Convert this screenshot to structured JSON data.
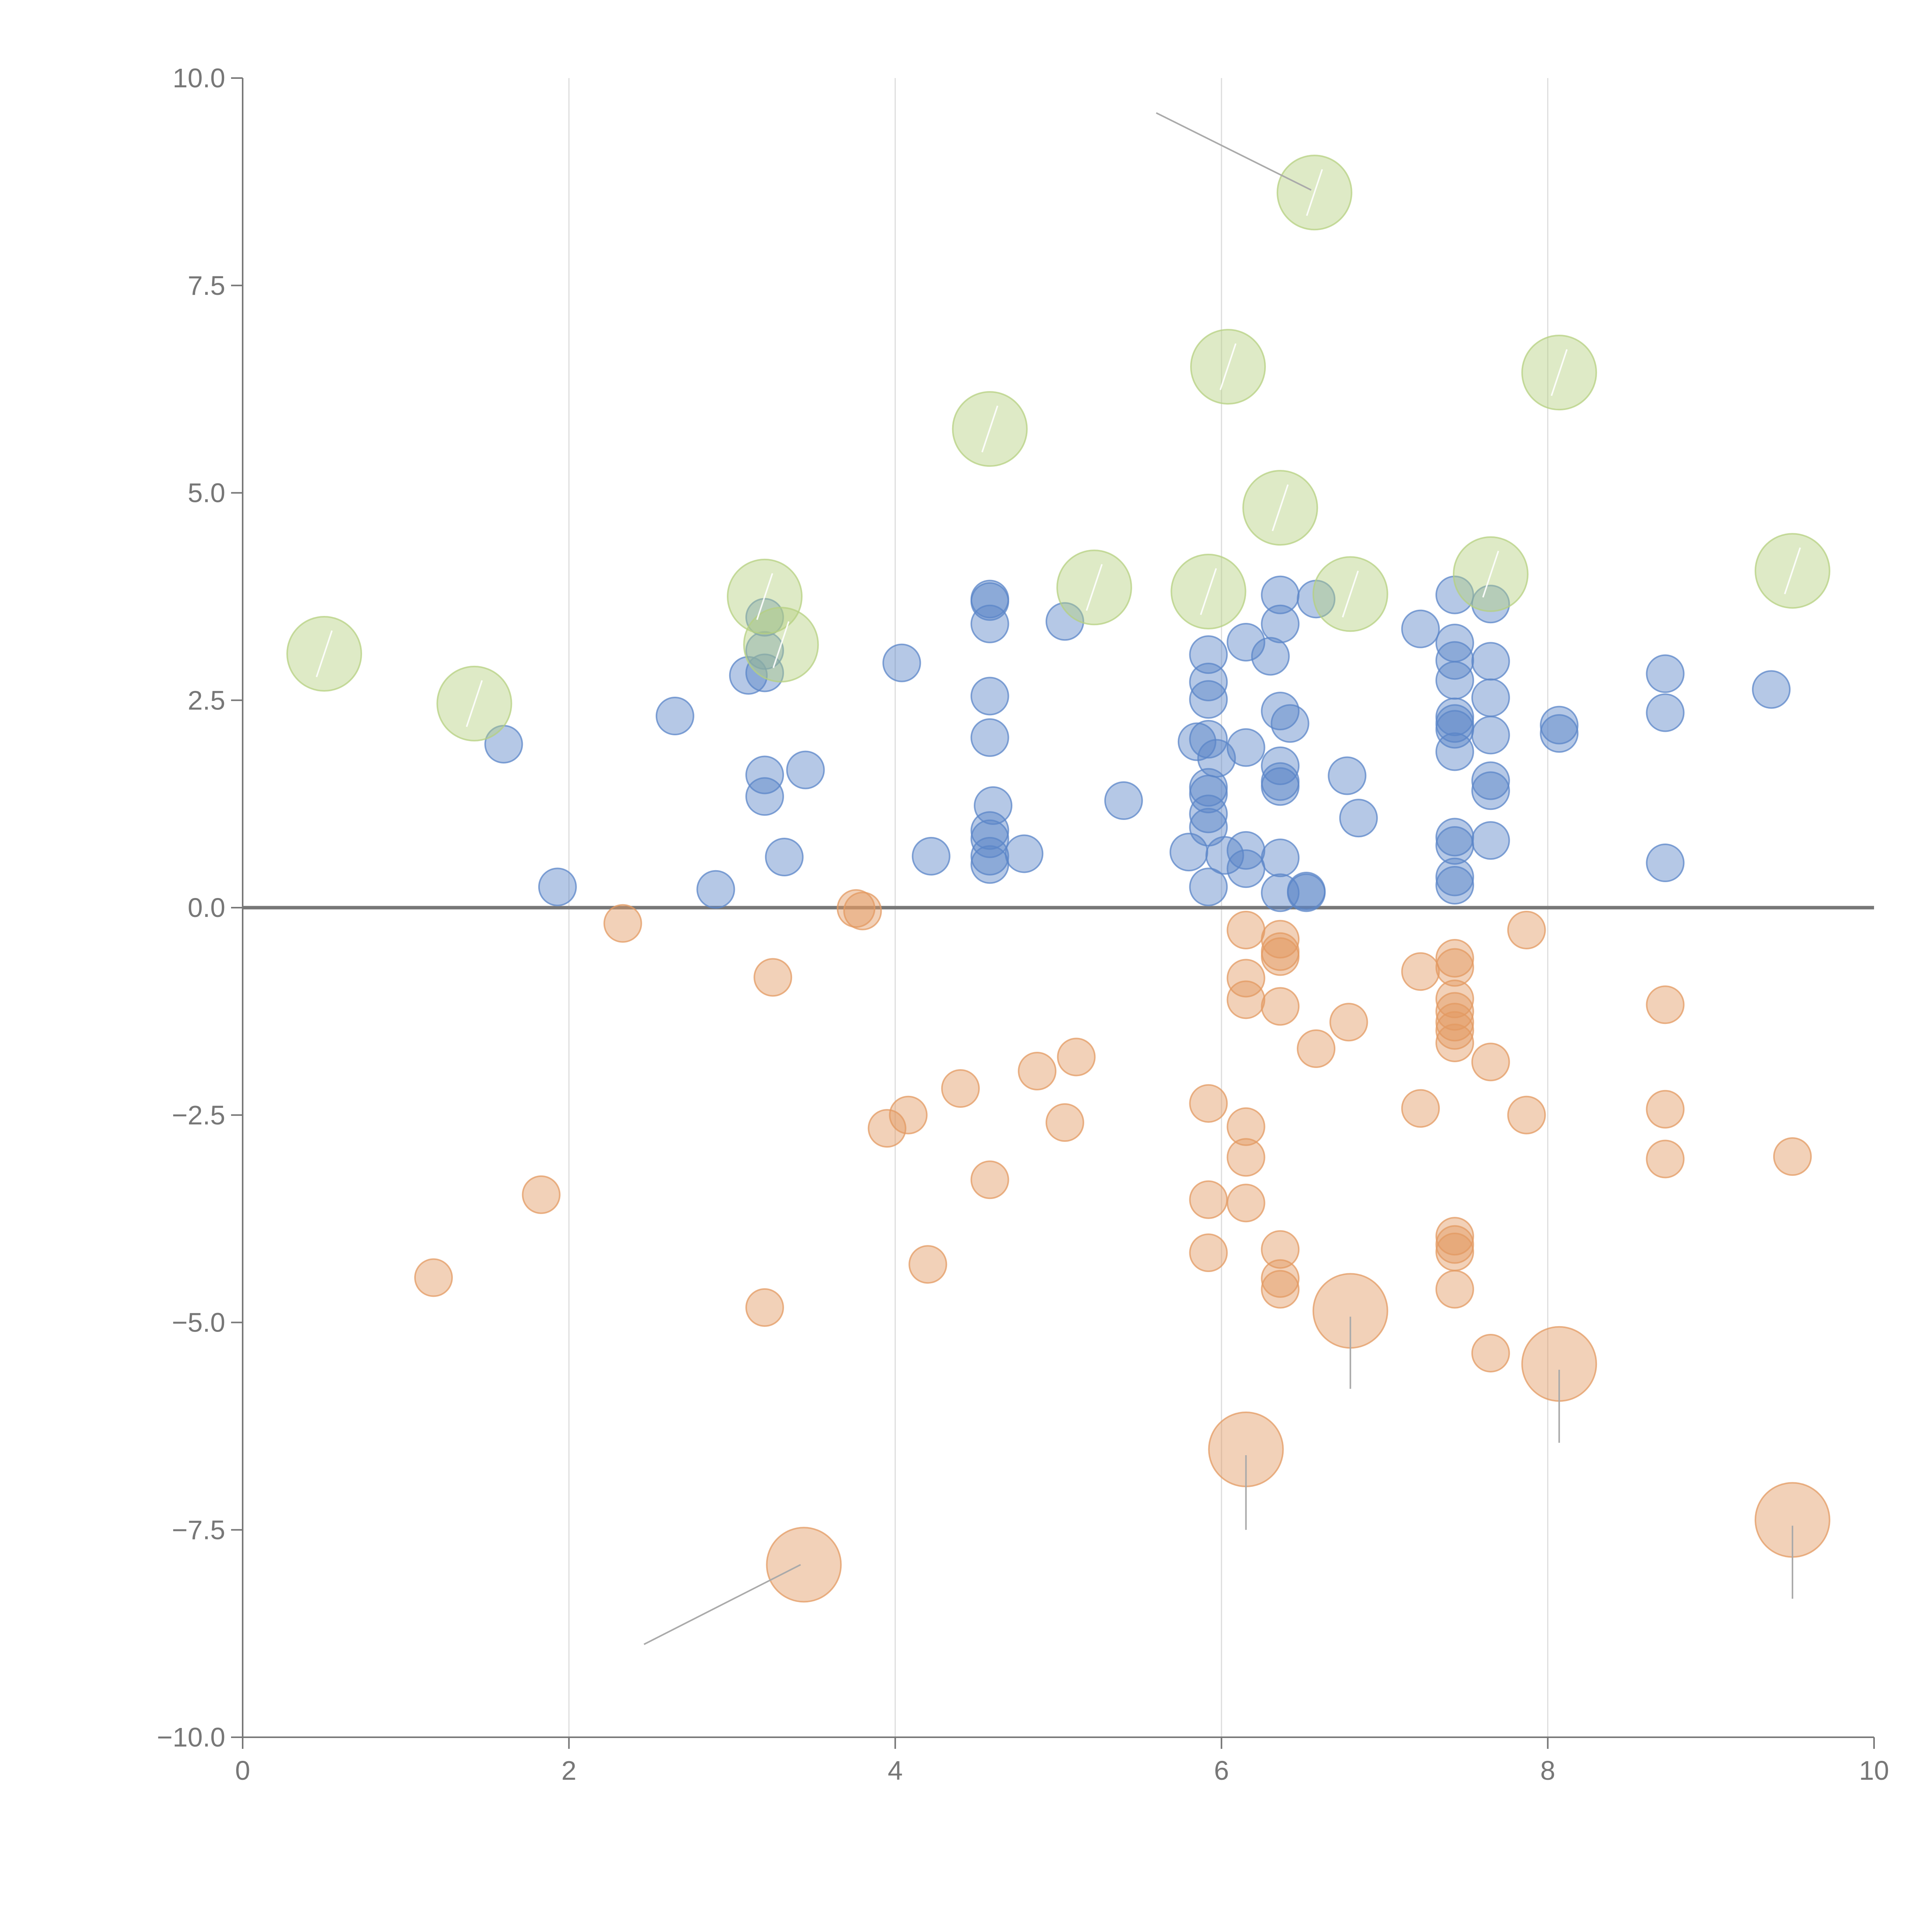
{
  "chart_data": {
    "type": "scatter",
    "title": "",
    "xlabel": "",
    "ylabel": "",
    "xlim": [
      0,
      10
    ],
    "ylim": [
      -10,
      10
    ],
    "x_ticks": [
      0,
      2,
      4,
      6,
      8,
      10
    ],
    "x_tick_labels": [
      "0",
      "2",
      "4",
      "6",
      "8",
      "10"
    ],
    "y_ticks": [
      -10,
      -7.5,
      -5,
      -2.5,
      0,
      2.5,
      5,
      7.5,
      10
    ],
    "y_tick_labels": [
      "−10.0",
      "−7.5",
      "−5.0",
      "−2.5",
      "0.0",
      "2.5",
      "5.0",
      "7.5",
      "10.0"
    ],
    "vertical_grid": true,
    "zero_line": true,
    "series": [
      {
        "name": "positive",
        "color": "#5b86c8",
        "size": "small",
        "points": [
          {
            "x": 1.6,
            "y": 1.97
          },
          {
            "x": 1.93,
            "y": 0.25
          },
          {
            "x": 2.65,
            "y": 2.31
          },
          {
            "x": 2.9,
            "y": 0.22
          },
          {
            "x": 3.1,
            "y": 2.8
          },
          {
            "x": 3.2,
            "y": 3.5
          },
          {
            "x": 3.2,
            "y": 3.1
          },
          {
            "x": 3.2,
            "y": 2.83
          },
          {
            "x": 3.2,
            "y": 1.6
          },
          {
            "x": 3.2,
            "y": 1.34
          },
          {
            "x": 3.32,
            "y": 0.61
          },
          {
            "x": 3.45,
            "y": 1.66
          },
          {
            "x": 4.04,
            "y": 2.95
          },
          {
            "x": 4.22,
            "y": 0.62
          },
          {
            "x": 4.58,
            "y": 3.72
          },
          {
            "x": 4.58,
            "y": 3.69
          },
          {
            "x": 4.58,
            "y": 3.42
          },
          {
            "x": 4.58,
            "y": 2.55
          },
          {
            "x": 4.58,
            "y": 2.05
          },
          {
            "x": 4.6,
            "y": 1.23
          },
          {
            "x": 4.58,
            "y": 0.93
          },
          {
            "x": 4.58,
            "y": 0.83
          },
          {
            "x": 4.58,
            "y": 0.62
          },
          {
            "x": 4.58,
            "y": 0.52
          },
          {
            "x": 4.79,
            "y": 0.65
          },
          {
            "x": 5.04,
            "y": 3.45
          },
          {
            "x": 5.4,
            "y": 1.29
          },
          {
            "x": 5.8,
            "y": 0.67
          },
          {
            "x": 5.85,
            "y": 2.0
          },
          {
            "x": 5.92,
            "y": 3.05
          },
          {
            "x": 5.92,
            "y": 2.72
          },
          {
            "x": 5.92,
            "y": 2.51
          },
          {
            "x": 5.92,
            "y": 2.03
          },
          {
            "x": 5.92,
            "y": 1.45
          },
          {
            "x": 5.92,
            "y": 1.37
          },
          {
            "x": 5.92,
            "y": 1.13
          },
          {
            "x": 5.92,
            "y": 0.97
          },
          {
            "x": 5.92,
            "y": 0.25
          },
          {
            "x": 5.97,
            "y": 1.8
          },
          {
            "x": 6.02,
            "y": 0.63
          },
          {
            "x": 6.15,
            "y": 1.93
          },
          {
            "x": 6.15,
            "y": 3.2
          },
          {
            "x": 6.15,
            "y": 0.69
          },
          {
            "x": 6.15,
            "y": 0.47
          },
          {
            "x": 6.3,
            "y": 3.03
          },
          {
            "x": 6.36,
            "y": 3.77
          },
          {
            "x": 6.36,
            "y": 3.42
          },
          {
            "x": 6.36,
            "y": 2.37
          },
          {
            "x": 6.42,
            "y": 2.22
          },
          {
            "x": 6.36,
            "y": 1.71
          },
          {
            "x": 6.36,
            "y": 1.52
          },
          {
            "x": 6.36,
            "y": 1.46
          },
          {
            "x": 6.36,
            "y": 0.6
          },
          {
            "x": 6.36,
            "y": 0.18
          },
          {
            "x": 6.52,
            "y": 0.2
          },
          {
            "x": 6.52,
            "y": 0.18
          },
          {
            "x": 6.58,
            "y": 3.72
          },
          {
            "x": 6.77,
            "y": 1.59
          },
          {
            "x": 6.84,
            "y": 1.08
          },
          {
            "x": 7.22,
            "y": 3.36
          },
          {
            "x": 7.43,
            "y": 3.77
          },
          {
            "x": 7.43,
            "y": 3.19
          },
          {
            "x": 7.43,
            "y": 2.98
          },
          {
            "x": 7.43,
            "y": 2.74
          },
          {
            "x": 7.43,
            "y": 2.3
          },
          {
            "x": 7.43,
            "y": 2.22
          },
          {
            "x": 7.43,
            "y": 2.15
          },
          {
            "x": 7.43,
            "y": 1.88
          },
          {
            "x": 7.43,
            "y": 0.85
          },
          {
            "x": 7.43,
            "y": 0.75
          },
          {
            "x": 7.43,
            "y": 0.37
          },
          {
            "x": 7.43,
            "y": 0.27
          },
          {
            "x": 7.65,
            "y": 3.66
          },
          {
            "x": 7.65,
            "y": 2.97
          },
          {
            "x": 7.65,
            "y": 2.53
          },
          {
            "x": 7.65,
            "y": 2.08
          },
          {
            "x": 7.65,
            "y": 1.53
          },
          {
            "x": 7.65,
            "y": 1.41
          },
          {
            "x": 7.65,
            "y": 0.81
          },
          {
            "x": 8.07,
            "y": 2.2
          },
          {
            "x": 8.07,
            "y": 2.1
          },
          {
            "x": 8.72,
            "y": 2.82
          },
          {
            "x": 8.72,
            "y": 2.35
          },
          {
            "x": 8.72,
            "y": 0.54
          },
          {
            "x": 9.37,
            "y": 2.63
          }
        ]
      },
      {
        "name": "negative",
        "color": "#e39a61",
        "size": "small",
        "points": [
          {
            "x": 1.17,
            "y": -4.46
          },
          {
            "x": 1.83,
            "y": -3.46
          },
          {
            "x": 2.33,
            "y": -0.19
          },
          {
            "x": 3.2,
            "y": -4.82
          },
          {
            "x": 3.25,
            "y": -0.84
          },
          {
            "x": 3.76,
            "y": -0.01
          },
          {
            "x": 3.8,
            "y": -0.04
          },
          {
            "x": 3.95,
            "y": -2.66
          },
          {
            "x": 4.08,
            "y": -2.5
          },
          {
            "x": 4.2,
            "y": -4.3
          },
          {
            "x": 4.4,
            "y": -2.18
          },
          {
            "x": 4.58,
            "y": -3.28
          },
          {
            "x": 4.87,
            "y": -1.97
          },
          {
            "x": 5.04,
            "y": -2.59
          },
          {
            "x": 5.11,
            "y": -1.8
          },
          {
            "x": 5.92,
            "y": -2.36
          },
          {
            "x": 5.92,
            "y": -3.52
          },
          {
            "x": 5.92,
            "y": -4.16
          },
          {
            "x": 6.15,
            "y": -0.27
          },
          {
            "x": 6.15,
            "y": -0.85
          },
          {
            "x": 6.15,
            "y": -1.11
          },
          {
            "x": 6.15,
            "y": -2.64
          },
          {
            "x": 6.15,
            "y": -3.01
          },
          {
            "x": 6.15,
            "y": -3.56
          },
          {
            "x": 6.36,
            "y": -0.38
          },
          {
            "x": 6.36,
            "y": -0.53
          },
          {
            "x": 6.36,
            "y": -0.59
          },
          {
            "x": 6.36,
            "y": -1.19
          },
          {
            "x": 6.36,
            "y": -4.12
          },
          {
            "x": 6.36,
            "y": -4.47
          },
          {
            "x": 6.36,
            "y": -4.6
          },
          {
            "x": 6.58,
            "y": -1.7
          },
          {
            "x": 6.78,
            "y": -1.38
          },
          {
            "x": 7.22,
            "y": -0.77
          },
          {
            "x": 7.22,
            "y": -2.42
          },
          {
            "x": 7.43,
            "y": -0.61
          },
          {
            "x": 7.43,
            "y": -0.72
          },
          {
            "x": 7.43,
            "y": -1.1
          },
          {
            "x": 7.43,
            "y": -1.25
          },
          {
            "x": 7.43,
            "y": -1.38
          },
          {
            "x": 7.43,
            "y": -1.48
          },
          {
            "x": 7.43,
            "y": -1.63
          },
          {
            "x": 7.43,
            "y": -3.96
          },
          {
            "x": 7.43,
            "y": -4.06
          },
          {
            "x": 7.43,
            "y": -4.15
          },
          {
            "x": 7.43,
            "y": -4.6
          },
          {
            "x": 7.65,
            "y": -1.86
          },
          {
            "x": 7.65,
            "y": -5.37
          },
          {
            "x": 7.87,
            "y": -0.27
          },
          {
            "x": 7.87,
            "y": -2.5
          },
          {
            "x": 8.72,
            "y": -1.17
          },
          {
            "x": 8.72,
            "y": -2.43
          },
          {
            "x": 8.72,
            "y": -3.03
          },
          {
            "x": 9.5,
            "y": -3.0
          }
        ]
      },
      {
        "name": "positive-large",
        "color": "#b5d080",
        "size": "large",
        "points": [
          {
            "x": 0.5,
            "y": 3.06
          },
          {
            "x": 1.42,
            "y": 2.46
          },
          {
            "x": 3.2,
            "y": 3.75
          },
          {
            "x": 3.3,
            "y": 3.17
          },
          {
            "x": 4.58,
            "y": 5.77
          },
          {
            "x": 5.22,
            "y": 3.86
          },
          {
            "x": 5.92,
            "y": 3.81
          },
          {
            "x": 6.04,
            "y": 6.52
          },
          {
            "x": 6.36,
            "y": 4.82
          },
          {
            "x": 6.57,
            "y": 8.62
          },
          {
            "x": 6.79,
            "y": 3.78
          },
          {
            "x": 7.65,
            "y": 4.02
          },
          {
            "x": 8.07,
            "y": 6.45
          },
          {
            "x": 9.5,
            "y": 4.06
          }
        ]
      },
      {
        "name": "negative-large",
        "color": "#e39a61",
        "size": "large",
        "points": [
          {
            "x": 3.44,
            "y": -7.92
          },
          {
            "x": 6.15,
            "y": -6.53
          },
          {
            "x": 6.79,
            "y": -4.86
          },
          {
            "x": 8.07,
            "y": -5.5
          },
          {
            "x": 9.5,
            "y": -7.38
          }
        ]
      }
    ],
    "leader_lines": [
      {
        "x1": 5.6,
        "y1": 9.58,
        "x2": 6.55,
        "y2": 8.65
      },
      {
        "x1": 2.46,
        "y1": -8.88,
        "x2": 3.42,
        "y2": -7.92
      },
      {
        "x1": 6.15,
        "y1": -6.6,
        "x2": 6.15,
        "y2": -7.5
      },
      {
        "x1": 6.79,
        "y1": -4.93,
        "x2": 6.79,
        "y2": -5.8
      },
      {
        "x1": 8.07,
        "y1": -5.57,
        "x2": 8.07,
        "y2": -6.45
      },
      {
        "x1": 9.5,
        "y1": -7.45,
        "x2": 9.5,
        "y2": -8.33
      }
    ]
  }
}
